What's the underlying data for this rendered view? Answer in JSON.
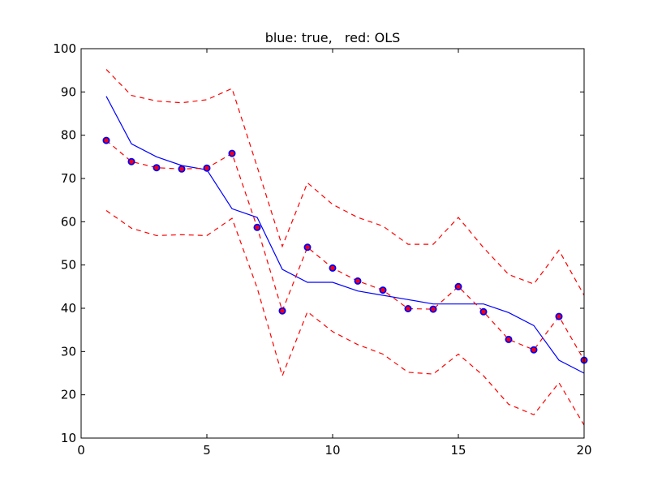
{
  "chart_data": {
    "type": "line",
    "title": "blue: true,   red: OLS",
    "xlabel": "",
    "ylabel": "",
    "xlim": [
      0,
      20
    ],
    "ylim": [
      10,
      100
    ],
    "grid": false,
    "x_ticks": [
      {
        "value": 0,
        "label": "0"
      },
      {
        "value": 5,
        "label": "5"
      },
      {
        "value": 10,
        "label": "10"
      },
      {
        "value": 15,
        "label": "15"
      },
      {
        "value": 20,
        "label": "20"
      }
    ],
    "y_ticks": [
      {
        "value": 10,
        "label": "10"
      },
      {
        "value": 20,
        "label": "20"
      },
      {
        "value": 30,
        "label": "30"
      },
      {
        "value": 40,
        "label": "40"
      },
      {
        "value": 50,
        "label": "50"
      },
      {
        "value": 60,
        "label": "60"
      },
      {
        "value": 70,
        "label": "70"
      },
      {
        "value": 80,
        "label": "80"
      },
      {
        "value": 90,
        "label": "90"
      },
      {
        "value": 100,
        "label": "100"
      }
    ],
    "x": [
      1,
      2,
      3,
      4,
      5,
      6,
      7,
      8,
      9,
      10,
      11,
      12,
      13,
      14,
      15,
      16,
      17,
      18,
      19,
      20
    ],
    "series": [
      {
        "name": "true",
        "style": "solid",
        "color": "#0000ff",
        "values": [
          89,
          78,
          75,
          73,
          72,
          63,
          61,
          49,
          46,
          46,
          44,
          43,
          42,
          41,
          41,
          41,
          39,
          36,
          28,
          25
        ]
      },
      {
        "name": "OLS",
        "style": "dashed-with-markers",
        "color": "#ff0000",
        "marker_edge": "#0000ff",
        "values": [
          78.8,
          73.9,
          72.5,
          72.2,
          72.4,
          75.8,
          58.7,
          39.4,
          54.1,
          49.3,
          46.3,
          44.2,
          39.9,
          39.8,
          45.0,
          39.2,
          32.8,
          30.4,
          38.1,
          28.0
        ]
      },
      {
        "name": "upper band",
        "style": "dashed",
        "color": "#ff0000",
        "values": [
          95.2,
          89.2,
          87.9,
          87.5,
          88.2,
          90.8,
          72.7,
          54.3,
          69.0,
          64.0,
          61.0,
          59.0,
          54.8,
          54.8,
          61.0,
          54.0,
          47.8,
          45.6,
          53.4,
          43.0
        ]
      },
      {
        "name": "lower band",
        "style": "dashed",
        "color": "#ff0000",
        "values": [
          62.6,
          58.5,
          56.8,
          57.0,
          56.8,
          60.8,
          44.7,
          24.4,
          39.2,
          34.6,
          31.6,
          29.4,
          25.2,
          24.8,
          29.4,
          24.4,
          17.8,
          15.4,
          22.8,
          13.0
        ]
      }
    ]
  }
}
